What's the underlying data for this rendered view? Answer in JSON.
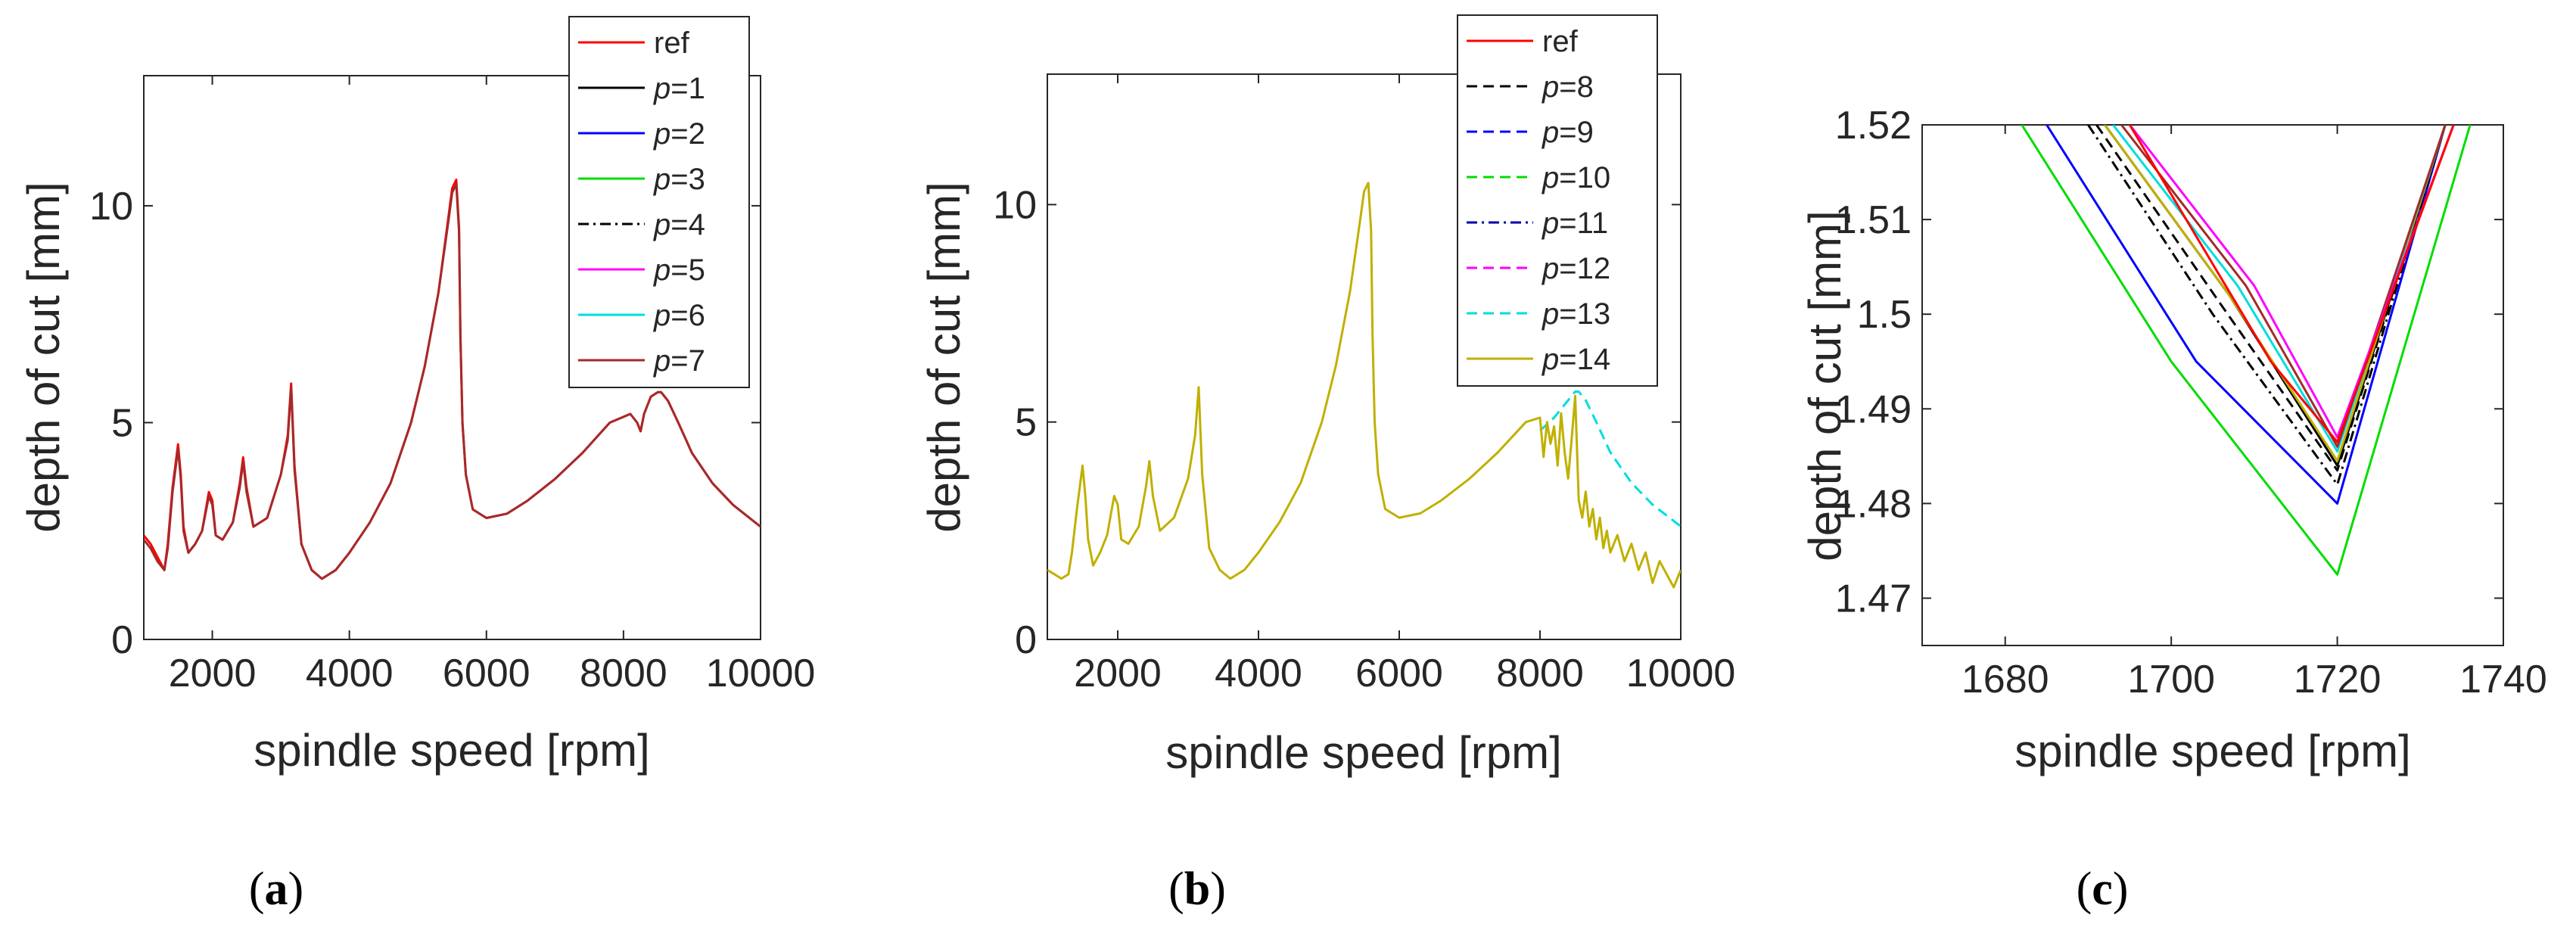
{
  "colors": {
    "ref": "#ff0000",
    "p1": "#000000",
    "p2": "#0000ff",
    "p3": "#00dd00",
    "p4": "#000000",
    "p5": "#ff00ff",
    "p6": "#00dddd",
    "p7": "#a52a2a",
    "p14": "#c0b000"
  },
  "chart_data": [
    {
      "id": "a",
      "type": "line",
      "caption": "(a)",
      "xlabel": "spindle speed [rpm]",
      "ylabel": "depth of cut [mm]",
      "xlim": [
        1000,
        10000
      ],
      "ylim": [
        0,
        13
      ],
      "xticks": [
        2000,
        4000,
        6000,
        8000,
        10000
      ],
      "yticks": [
        0,
        5,
        10
      ],
      "legend_position": "top-right",
      "legend": [
        {
          "prefix": "",
          "name": "ref",
          "color": "#ff0000",
          "dash": "solid"
        },
        {
          "prefix": "p",
          "name": "=1",
          "color": "#000000",
          "dash": "solid"
        },
        {
          "prefix": "p",
          "name": "=2",
          "color": "#0000ff",
          "dash": "solid"
        },
        {
          "prefix": "p",
          "name": "=3",
          "color": "#00dd00",
          "dash": "solid"
        },
        {
          "prefix": "p",
          "name": "=4",
          "color": "#000000",
          "dash": "dashdot"
        },
        {
          "prefix": "p",
          "name": "=5",
          "color": "#ff00ff",
          "dash": "solid"
        },
        {
          "prefix": "p",
          "name": "=6",
          "color": "#00dddd",
          "dash": "solid"
        },
        {
          "prefix": "p",
          "name": "=7",
          "color": "#a52a2a",
          "dash": "solid"
        }
      ],
      "series": [
        {
          "name": "ref",
          "color": "#ff0000",
          "dash": "solid",
          "x": [
            1000,
            1100,
            1200,
            1300,
            1350,
            1420,
            1500,
            1540,
            1580,
            1650,
            1750,
            1850,
            1950,
            2000,
            2050,
            2150,
            2300,
            2400,
            2450,
            2500,
            2600,
            2800,
            3000,
            3100,
            3150,
            3200,
            3300,
            3450,
            3600,
            3800,
            4000,
            4300,
            4600,
            4900,
            5100,
            5300,
            5450,
            5500,
            5560,
            5600,
            5620,
            5650,
            5700,
            5800,
            6000,
            6300,
            6600,
            7000,
            7400,
            7800,
            8100,
            8200,
            8250,
            8300,
            8400,
            8500,
            8550,
            8650,
            8800,
            9000,
            9300,
            9600,
            10000
          ],
          "y": [
            2.4,
            2.2,
            1.9,
            1.6,
            2.2,
            3.5,
            4.5,
            3.8,
            2.6,
            2.0,
            2.2,
            2.5,
            3.4,
            3.2,
            2.4,
            2.3,
            2.7,
            3.6,
            4.2,
            3.5,
            2.6,
            2.8,
            3.8,
            4.7,
            5.9,
            4.0,
            2.2,
            1.6,
            1.4,
            1.6,
            2.0,
            2.7,
            3.6,
            5.0,
            6.3,
            8.0,
            9.8,
            10.4,
            10.6,
            9.5,
            7.0,
            5.0,
            3.8,
            3.0,
            2.8,
            2.9,
            3.2,
            3.7,
            4.3,
            5.0,
            5.2,
            5.0,
            4.8,
            5.2,
            5.6,
            5.7,
            5.7,
            5.5,
            5.0,
            4.3,
            3.6,
            3.1,
            2.6
          ]
        },
        {
          "name": "p=7",
          "color": "#a52a2a",
          "dash": "solid",
          "x": [
            1000,
            1100,
            1200,
            1300,
            1350,
            1420,
            1500,
            1540,
            1580,
            1650,
            1750,
            1850,
            1950,
            2000,
            2050,
            2150,
            2300,
            2400,
            2450,
            2500,
            2600,
            2800,
            3000,
            3100,
            3150,
            3200,
            3300,
            3450,
            3600,
            3800,
            4000,
            4300,
            4600,
            4900,
            5100,
            5300,
            5450,
            5500,
            5560,
            5600,
            5620,
            5650,
            5700,
            5800,
            6000,
            6300,
            6600,
            7000,
            7400,
            7800,
            8100,
            8200,
            8250,
            8300,
            8400,
            8500,
            8550,
            8650,
            8800,
            9000,
            9300,
            9600,
            10000
          ],
          "y": [
            2.3,
            2.1,
            1.8,
            1.6,
            2.1,
            3.4,
            4.4,
            3.7,
            2.5,
            2.0,
            2.2,
            2.5,
            3.3,
            3.1,
            2.4,
            2.3,
            2.7,
            3.5,
            4.1,
            3.4,
            2.6,
            2.8,
            3.8,
            4.6,
            5.8,
            3.9,
            2.2,
            1.6,
            1.4,
            1.6,
            2.0,
            2.7,
            3.6,
            5.0,
            6.3,
            8.0,
            9.7,
            10.3,
            10.5,
            9.4,
            7.0,
            5.0,
            3.8,
            3.0,
            2.8,
            2.9,
            3.2,
            3.7,
            4.3,
            5.0,
            5.2,
            5.0,
            4.8,
            5.2,
            5.6,
            5.7,
            5.7,
            5.5,
            5.0,
            4.3,
            3.6,
            3.1,
            2.6
          ]
        }
      ]
    },
    {
      "id": "b",
      "type": "line",
      "caption": "(b)",
      "xlabel": "spindle speed [rpm]",
      "ylabel": "depth of cut [mm]",
      "xlim": [
        1000,
        10000
      ],
      "ylim": [
        0,
        13
      ],
      "xticks": [
        2000,
        4000,
        6000,
        8000,
        10000
      ],
      "yticks": [
        0,
        5,
        10
      ],
      "legend_position": "top-right",
      "legend": [
        {
          "prefix": "",
          "name": "ref",
          "color": "#ff0000",
          "dash": "solid"
        },
        {
          "prefix": "p",
          "name": "=8",
          "color": "#000000",
          "dash": "dashed"
        },
        {
          "prefix": "p",
          "name": "=9",
          "color": "#0000ff",
          "dash": "dashed"
        },
        {
          "prefix": "p",
          "name": "=10",
          "color": "#00dd00",
          "dash": "dashed"
        },
        {
          "prefix": "p",
          "name": "=11",
          "color": "#0000aa",
          "dash": "dashdot"
        },
        {
          "prefix": "p",
          "name": "=12",
          "color": "#ff00ff",
          "dash": "dashed"
        },
        {
          "prefix": "p",
          "name": "=13",
          "color": "#00dddd",
          "dash": "dashed"
        },
        {
          "prefix": "p",
          "name": "=14",
          "color": "#c0b000",
          "dash": "solid"
        }
      ],
      "series": [
        {
          "name": "p=13",
          "color": "#00dddd",
          "dash": "dashed",
          "x": [
            8000,
            8200,
            8400,
            8500,
            8550,
            8650,
            8800,
            9000,
            9300,
            9600,
            10000
          ],
          "y": [
            4.8,
            5.1,
            5.5,
            5.7,
            5.7,
            5.5,
            5.0,
            4.3,
            3.6,
            3.1,
            2.6
          ]
        },
        {
          "name": "p=14",
          "color": "#c0b000",
          "dash": "solid",
          "x": [
            1000,
            1100,
            1200,
            1300,
            1350,
            1420,
            1500,
            1540,
            1580,
            1650,
            1750,
            1850,
            1950,
            2000,
            2050,
            2150,
            2300,
            2400,
            2450,
            2500,
            2600,
            2800,
            3000,
            3100,
            3150,
            3200,
            3300,
            3450,
            3600,
            3800,
            4000,
            4300,
            4600,
            4900,
            5100,
            5300,
            5450,
            5500,
            5560,
            5600,
            5620,
            5650,
            5700,
            5800,
            6000,
            6300,
            6600,
            7000,
            7400,
            7800,
            8000,
            8050,
            8100,
            8150,
            8200,
            8250,
            8300,
            8350,
            8400,
            8450,
            8500,
            8550,
            8600,
            8650,
            8700,
            8750,
            8800,
            8850,
            8900,
            8950,
            9000,
            9100,
            9200,
            9300,
            9400,
            9500,
            9600,
            9700,
            9800,
            9900,
            10000
          ],
          "y": [
            1.6,
            1.5,
            1.4,
            1.5,
            2.0,
            3.0,
            4.0,
            3.3,
            2.3,
            1.7,
            2.0,
            2.4,
            3.3,
            3.1,
            2.3,
            2.2,
            2.6,
            3.5,
            4.1,
            3.3,
            2.5,
            2.8,
            3.7,
            4.7,
            5.8,
            3.8,
            2.1,
            1.6,
            1.4,
            1.6,
            2.0,
            2.7,
            3.6,
            5.0,
            6.3,
            8.0,
            9.7,
            10.3,
            10.5,
            9.4,
            7.0,
            5.0,
            3.8,
            3.0,
            2.8,
            2.9,
            3.2,
            3.7,
            4.3,
            5.0,
            5.1,
            4.2,
            5.0,
            4.5,
            4.9,
            4.0,
            5.2,
            4.3,
            3.7,
            4.6,
            5.6,
            3.2,
            2.8,
            3.4,
            2.6,
            3.0,
            2.3,
            2.8,
            2.1,
            2.5,
            2.0,
            2.4,
            1.8,
            2.2,
            1.6,
            2.0,
            1.3,
            1.8,
            1.5,
            1.2,
            1.6
          ]
        }
      ]
    },
    {
      "id": "c",
      "type": "line",
      "caption": "(c)",
      "xlabel": "spindle speed [rpm]",
      "ylabel": "depth of cut [mm]",
      "xlim": [
        1670,
        1740
      ],
      "ylim": [
        1.465,
        1.52
      ],
      "xticks": [
        1680,
        1700,
        1720,
        1740
      ],
      "yticks": [
        1.47,
        1.48,
        1.49,
        1.5,
        1.51,
        1.52
      ],
      "yticklabels": [
        "1.47",
        "1.48",
        "1.49",
        "1.5",
        "1.51",
        "1.52"
      ],
      "series": [
        {
          "name": "p=3",
          "color": "#00dd00",
          "dash": "solid",
          "x": [
            1682,
            1700,
            1720,
            1736
          ],
          "y": [
            1.52,
            1.495,
            1.4725,
            1.52
          ]
        },
        {
          "name": "p=2",
          "color": "#0000ff",
          "dash": "solid",
          "x": [
            1685,
            1703,
            1720,
            1733
          ],
          "y": [
            1.52,
            1.495,
            1.48,
            1.52
          ]
        },
        {
          "name": "p=4",
          "color": "#000000",
          "dash": "dashdot",
          "x": [
            1690,
            1705,
            1720,
            1733
          ],
          "y": [
            1.52,
            1.5,
            1.482,
            1.52
          ]
        },
        {
          "name": "p=8",
          "color": "#000000",
          "dash": "dashed",
          "x": [
            1691,
            1706,
            1720,
            1733
          ],
          "y": [
            1.52,
            1.501,
            1.4835,
            1.52
          ]
        },
        {
          "name": "p=1",
          "color": "#000000",
          "dash": "solid",
          "x": [
            1692,
            1707,
            1720,
            1733
          ],
          "y": [
            1.52,
            1.502,
            1.484,
            1.52
          ]
        },
        {
          "name": "p=14",
          "color": "#c0b000",
          "dash": "solid",
          "x": [
            1692,
            1707,
            1720,
            1733
          ],
          "y": [
            1.52,
            1.502,
            1.4845,
            1.52
          ]
        },
        {
          "name": "p=6",
          "color": "#00dddd",
          "dash": "solid",
          "x": [
            1693,
            1708,
            1720,
            1733
          ],
          "y": [
            1.52,
            1.503,
            1.4855,
            1.52
          ]
        },
        {
          "name": "p=7",
          "color": "#a52a2a",
          "dash": "solid",
          "x": [
            1694,
            1709,
            1720,
            1733
          ],
          "y": [
            1.52,
            1.503,
            1.486,
            1.52
          ]
        },
        {
          "name": "p=5",
          "color": "#ff00ff",
          "dash": "solid",
          "x": [
            1695,
            1710,
            1720,
            1734
          ],
          "y": [
            1.52,
            1.503,
            1.487,
            1.52
          ]
        },
        {
          "name": "ref",
          "color": "#ff0000",
          "dash": "solid",
          "x": [
            1695,
            1712,
            1720,
            1734
          ],
          "y": [
            1.52,
            1.495,
            1.4865,
            1.52
          ]
        }
      ]
    }
  ]
}
